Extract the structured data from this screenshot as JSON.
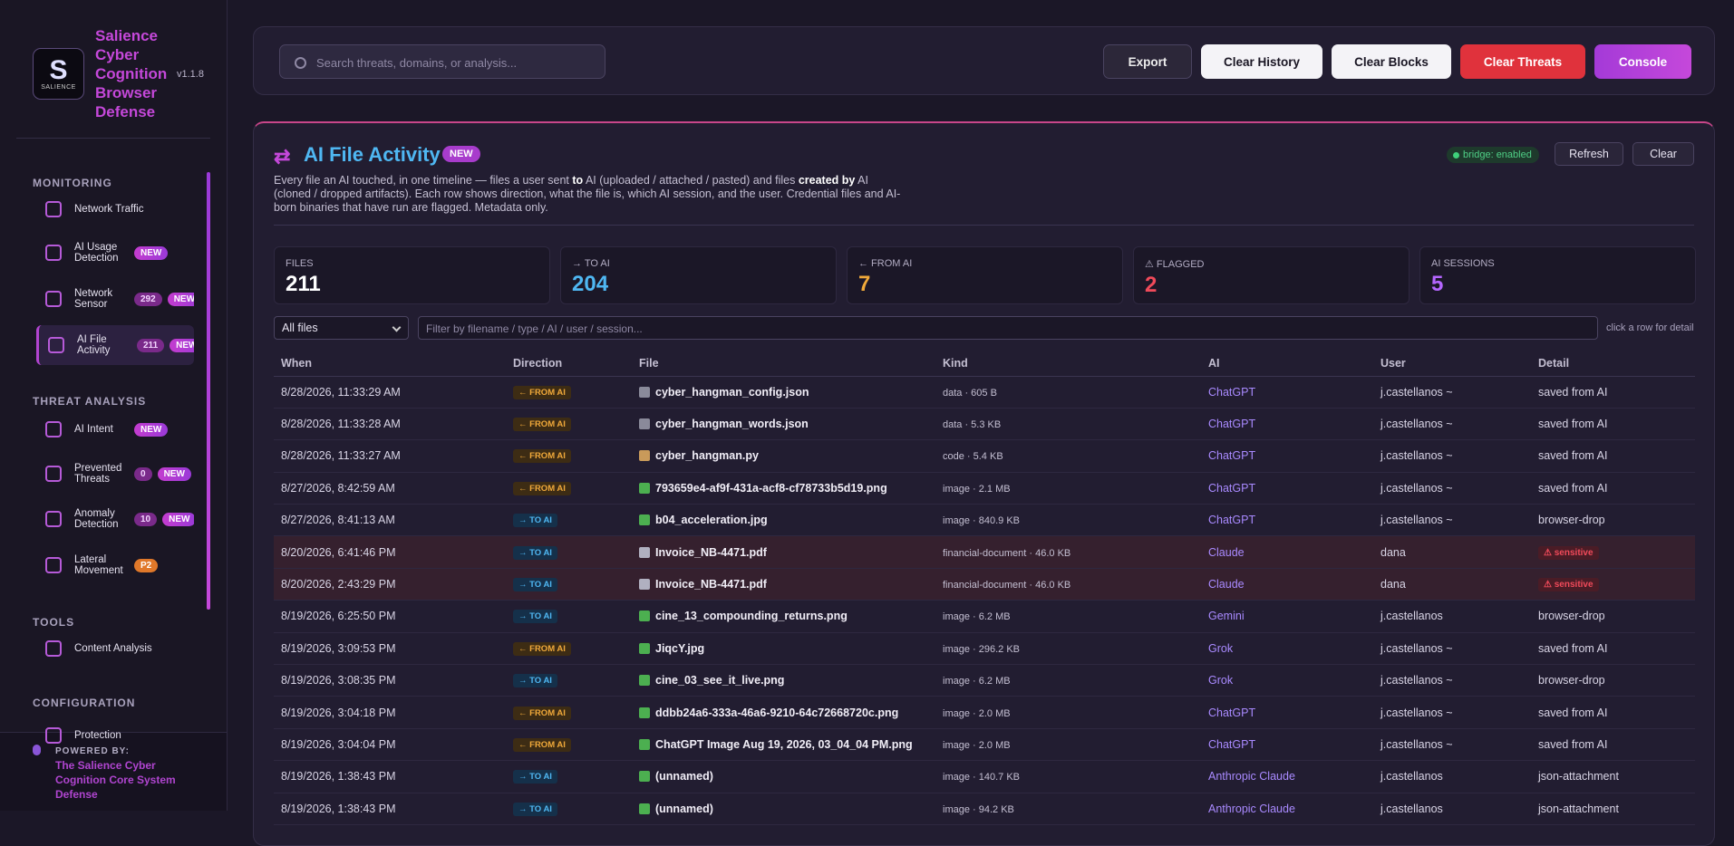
{
  "sidebar": {
    "brand": {
      "title": "Salience Cyber Cognition Browser Defense",
      "version": "v1.1.8",
      "logo_text": "SALIENCE"
    },
    "sections": [
      {
        "title": "MONITORING",
        "items": [
          {
            "label": "Network Traffic",
            "badges": []
          },
          {
            "label": "AI Usage Detection",
            "badges": [
              "NEW"
            ]
          },
          {
            "label": "Network Sensor",
            "badges": [
              "292",
              "NEW"
            ]
          },
          {
            "label": "AI File Activity",
            "badges": [
              "211",
              "NEW"
            ],
            "active": true
          }
        ]
      },
      {
        "title": "THREAT ANALYSIS",
        "items": [
          {
            "label": "AI Intent",
            "badges": [
              "NEW"
            ]
          },
          {
            "label": "Prevented Threats",
            "badges": [
              "0",
              "NEW"
            ]
          },
          {
            "label": "Anomaly Detection",
            "badges": [
              "10",
              "NEW"
            ]
          },
          {
            "label": "Lateral Movement",
            "badges": [
              "P2"
            ]
          }
        ]
      },
      {
        "title": "TOOLS",
        "items": [
          {
            "label": "Content Analysis",
            "badges": []
          }
        ]
      },
      {
        "title": "CONFIGURATION",
        "items": [
          {
            "label": "Protection",
            "badges": []
          }
        ]
      }
    ],
    "footer": {
      "label": "POWERED BY:",
      "text": "The Salience Cyber Cognition Core System Defense"
    }
  },
  "toolbar": {
    "search_placeholder": "Search threats, domains, or analysis...",
    "buttons": [
      "Export",
      "Clear History",
      "Clear Blocks",
      "Clear Threats",
      "Console"
    ]
  },
  "panel": {
    "title": "AI File Activity",
    "badge": "NEW",
    "description": [
      "Every file an AI touched, in one timeline — files a user sent ",
      "to",
      " AI (uploaded / attached / pasted) and files ",
      "created by",
      " AI (cloned / dropped artifacts). Each row shows direction, what the file is, which AI session, and the user. Credential files and AI-born binaries that have run are flagged. Metadata only."
    ],
    "bridge": "bridge: enabled",
    "actions": [
      "Refresh",
      "Clear"
    ],
    "stats": [
      {
        "label": "FILES",
        "value": 211
      },
      {
        "label": "→ TO AI",
        "value": 204
      },
      {
        "label": "← FROM AI",
        "value": 7
      },
      {
        "label": "⚠ FLAGGED",
        "value": 2
      },
      {
        "label": "AI SESSIONS",
        "value": 5
      }
    ],
    "filter_select": "All files",
    "filter_placeholder": "Filter by filename / type / AI / user / session...",
    "hint": "click a row for detail",
    "table": {
      "columns": [
        "When",
        "Direction",
        "File",
        "Kind",
        "AI",
        "User",
        "Detail"
      ],
      "rows": [
        [
          "8/28/2026, 11:33:29 AM",
          "← FROM AI",
          "cyber_hangman_config.json",
          "data · 605 B",
          "ChatGPT",
          "j.castellanos ~",
          "saved from AI"
        ],
        [
          "8/28/2026, 11:33:28 AM",
          "← FROM AI",
          "cyber_hangman_words.json",
          "data · 5.3 KB",
          "ChatGPT",
          "j.castellanos ~",
          "saved from AI"
        ],
        [
          "8/28/2026, 11:33:27 AM",
          "← FROM AI",
          "cyber_hangman.py",
          "code · 5.4 KB",
          "ChatGPT",
          "j.castellanos ~",
          "saved from AI"
        ],
        [
          "8/27/2026, 8:42:59 AM",
          "← FROM AI",
          "793659e4-af9f-431a-acf8-cf78733b5d19.png",
          "image · 2.1 MB",
          "ChatGPT",
          "j.castellanos ~",
          "saved from AI"
        ],
        [
          "8/27/2026, 8:41:13 AM",
          "→ TO AI",
          "b04_acceleration.jpg",
          "image · 840.9 KB",
          "ChatGPT",
          "j.castellanos ~",
          "browser-drop"
        ],
        [
          "8/20/2026, 6:41:46 PM",
          "→ TO AI",
          "Invoice_NB-4471.pdf",
          "financial-document · 46.0 KB",
          "Claude",
          "dana",
          "⚠ sensitive"
        ],
        [
          "8/20/2026, 2:43:29 PM",
          "→ TO AI",
          "Invoice_NB-4471.pdf",
          "financial-document · 46.0 KB",
          "Claude",
          "dana",
          "⚠ sensitive"
        ],
        [
          "8/19/2026, 6:25:50 PM",
          "→ TO AI",
          "cine_13_compounding_returns.png",
          "image · 6.2 MB",
          "Gemini",
          "j.castellanos",
          "browser-drop"
        ],
        [
          "8/19/2026, 3:09:53 PM",
          "← FROM AI",
          "JiqcY.jpg",
          "image · 296.2 KB",
          "Grok",
          "j.castellanos ~",
          "saved from AI"
        ],
        [
          "8/19/2026, 3:08:35 PM",
          "→ TO AI",
          "cine_03_see_it_live.png",
          "image · 6.2 MB",
          "Grok",
          "j.castellanos ~",
          "browser-drop"
        ],
        [
          "8/19/2026, 3:04:18 PM",
          "← FROM AI",
          "ddbb24a6-333a-46a6-9210-64c72668720c.png",
          "image · 2.0 MB",
          "ChatGPT",
          "j.castellanos ~",
          "saved from AI"
        ],
        [
          "8/19/2026, 3:04:04 PM",
          "← FROM AI",
          "ChatGPT Image Aug 19, 2026, 03_04_04 PM.png",
          "image · 2.0 MB",
          "ChatGPT",
          "j.castellanos ~",
          "saved from AI"
        ],
        [
          "8/19/2026, 1:38:43 PM",
          "→ TO AI",
          "(unnamed)",
          "image · 140.7 KB",
          "Anthropic Claude",
          "j.castellanos",
          "json-attachment"
        ],
        [
          "8/19/2026, 1:38:43 PM",
          "→ TO AI",
          "(unnamed)",
          "image · 94.2 KB",
          "Anthropic Claude",
          "j.castellanos",
          "json-attachment"
        ]
      ],
      "flagged": [
        false,
        false,
        false,
        false,
        false,
        true,
        true,
        false,
        false,
        false,
        false,
        false,
        false,
        false
      ]
    }
  }
}
